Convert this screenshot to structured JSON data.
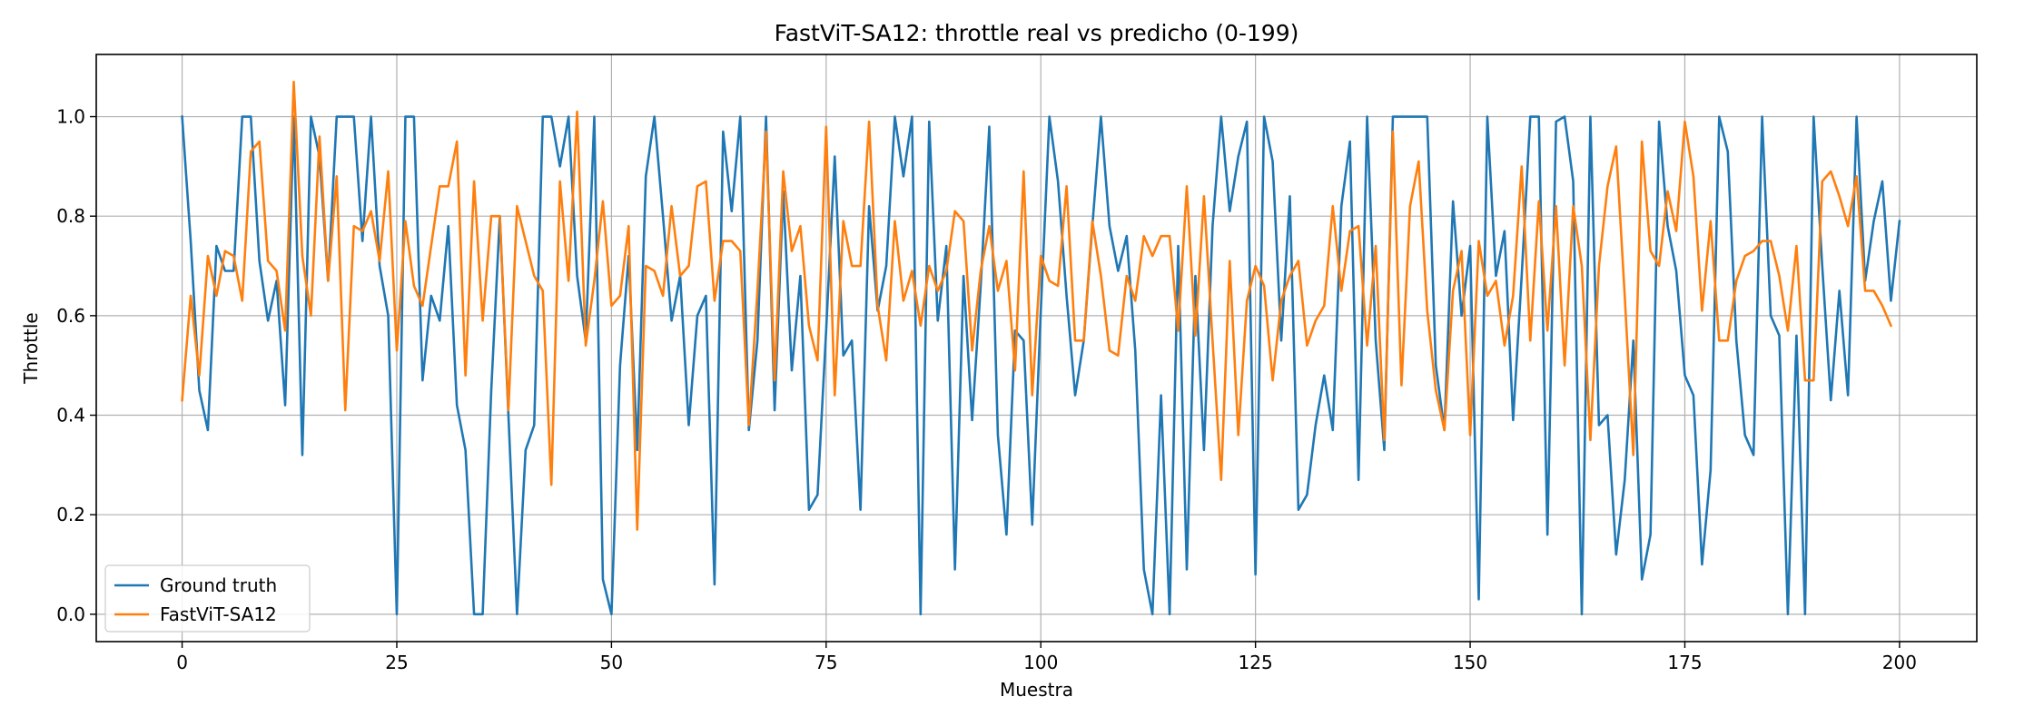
{
  "chart_data": {
    "type": "line",
    "title": "FastViT-SA12: throttle real vs predicho (0-199)",
    "xlabel": "Muestra",
    "ylabel": "Throttle",
    "xlim": [
      -10,
      209
    ],
    "ylim": [
      -0.055,
      1.125
    ],
    "xticks": [
      0,
      25,
      50,
      75,
      100,
      125,
      150,
      175,
      200
    ],
    "yticks": [
      0.0,
      0.2,
      0.4,
      0.6,
      0.8,
      1.0
    ],
    "xtick_labels": [
      "0",
      "25",
      "50",
      "75",
      "100",
      "125",
      "150",
      "175",
      "200"
    ],
    "ytick_labels": [
      "0.0",
      "0.2",
      "0.4",
      "0.6",
      "0.8",
      "1.0"
    ],
    "grid": true,
    "legend_position": "lower-left",
    "series": [
      {
        "name": "Ground truth",
        "color": "#1f77b4",
        "values": [
          1.0,
          0.75,
          0.45,
          0.37,
          0.74,
          0.69,
          0.69,
          1.0,
          1.0,
          0.71,
          0.59,
          0.67,
          0.42,
          1.0,
          0.32,
          1.0,
          0.92,
          0.67,
          1.0,
          1.0,
          1.0,
          0.75,
          1.0,
          0.7,
          0.6,
          0.0,
          1.0,
          1.0,
          0.47,
          0.64,
          0.59,
          0.78,
          0.42,
          0.33,
          0.0,
          0.0,
          0.45,
          0.8,
          0.4,
          0.0,
          0.33,
          0.38,
          1.0,
          1.0,
          0.9,
          1.0,
          0.68,
          0.55,
          1.0,
          0.07,
          0.0,
          0.5,
          0.72,
          0.33,
          0.88,
          1.0,
          0.8,
          0.59,
          0.68,
          0.38,
          0.6,
          0.64,
          0.06,
          0.97,
          0.81,
          1.0,
          0.37,
          0.55,
          1.0,
          0.41,
          0.85,
          0.49,
          0.68,
          0.21,
          0.24,
          0.57,
          0.92,
          0.52,
          0.55,
          0.21,
          0.82,
          0.61,
          0.7,
          1.0,
          0.88,
          1.0,
          0.0,
          0.99,
          0.59,
          0.74,
          0.09,
          0.68,
          0.39,
          0.66,
          0.98,
          0.36,
          0.16,
          0.57,
          0.55,
          0.18,
          0.61,
          1.0,
          0.87,
          0.64,
          0.44,
          0.55,
          0.78,
          1.0,
          0.78,
          0.69,
          0.76,
          0.53,
          0.09,
          0.0,
          0.44,
          0.0,
          0.74,
          0.09,
          0.68,
          0.33,
          0.78,
          1.0,
          0.81,
          0.92,
          0.99,
          0.08,
          1.0,
          0.91,
          0.55,
          0.84,
          0.21,
          0.24,
          0.38,
          0.48,
          0.37,
          0.82,
          0.95,
          0.27,
          1.0,
          0.55,
          0.33,
          1.0,
          1.0,
          1.0,
          1.0,
          1.0,
          0.5,
          0.37,
          0.83,
          0.6,
          0.74,
          0.03,
          1.0,
          0.68,
          0.77,
          0.39,
          0.68,
          1.0,
          1.0,
          0.16,
          0.99,
          1.0,
          0.87,
          0.0,
          1.0,
          0.38,
          0.4,
          0.12,
          0.27,
          0.55,
          0.07,
          0.16,
          0.99,
          0.78,
          0.69,
          0.48,
          0.44,
          0.1,
          0.29,
          1.0,
          0.93,
          0.55,
          0.36,
          0.32,
          1.0,
          0.6,
          0.56,
          0.0,
          0.56,
          0.0,
          1.0,
          0.7,
          0.43,
          0.65,
          0.44,
          1.0,
          0.67,
          0.79,
          0.87,
          0.63,
          0.79
        ]
      },
      {
        "name": "FastViT-SA12",
        "color": "#ff7f0e",
        "values": [
          0.43,
          0.64,
          0.48,
          0.72,
          0.64,
          0.73,
          0.72,
          0.63,
          0.93,
          0.95,
          0.71,
          0.69,
          0.57,
          1.07,
          0.72,
          0.6,
          0.96,
          0.67,
          0.88,
          0.41,
          0.78,
          0.77,
          0.81,
          0.71,
          0.89,
          0.53,
          0.79,
          0.66,
          0.62,
          0.74,
          0.86,
          0.86,
          0.95,
          0.48,
          0.87,
          0.59,
          0.8,
          0.8,
          0.41,
          0.82,
          0.75,
          0.68,
          0.65,
          0.26,
          0.87,
          0.67,
          1.01,
          0.54,
          0.67,
          0.83,
          0.62,
          0.64,
          0.78,
          0.17,
          0.7,
          0.69,
          0.64,
          0.82,
          0.68,
          0.7,
          0.86,
          0.87,
          0.63,
          0.75,
          0.75,
          0.73,
          0.38,
          0.65,
          0.97,
          0.47,
          0.89,
          0.73,
          0.78,
          0.58,
          0.51,
          0.98,
          0.44,
          0.79,
          0.7,
          0.7,
          0.99,
          0.62,
          0.51,
          0.79,
          0.63,
          0.69,
          0.58,
          0.7,
          0.65,
          0.69,
          0.81,
          0.79,
          0.53,
          0.69,
          0.78,
          0.65,
          0.71,
          0.49,
          0.89,
          0.44,
          0.72,
          0.67,
          0.66,
          0.86,
          0.55,
          0.55,
          0.79,
          0.68,
          0.53,
          0.52,
          0.68,
          0.63,
          0.76,
          0.72,
          0.76,
          0.76,
          0.57,
          0.86,
          0.56,
          0.84,
          0.55,
          0.27,
          0.71,
          0.36,
          0.63,
          0.7,
          0.66,
          0.47,
          0.63,
          0.68,
          0.71,
          0.54,
          0.59,
          0.62,
          0.82,
          0.65,
          0.77,
          0.78,
          0.54,
          0.74,
          0.35,
          0.97,
          0.46,
          0.82,
          0.91,
          0.61,
          0.45,
          0.37,
          0.65,
          0.73,
          0.36,
          0.75,
          0.64,
          0.67,
          0.54,
          0.64,
          0.9,
          0.55,
          0.83,
          0.57,
          0.82,
          0.5,
          0.82,
          0.7,
          0.35,
          0.7,
          0.86,
          0.94,
          0.64,
          0.32,
          0.95,
          0.73,
          0.7,
          0.85,
          0.77,
          0.99,
          0.88,
          0.61,
          0.79,
          0.55,
          0.55,
          0.67,
          0.72,
          0.73,
          0.75,
          0.75,
          0.68,
          0.57,
          0.74,
          0.47,
          0.47,
          0.87,
          0.89,
          0.84,
          0.78,
          0.88,
          0.65,
          0.65,
          0.62,
          0.58
        ]
      }
    ]
  }
}
